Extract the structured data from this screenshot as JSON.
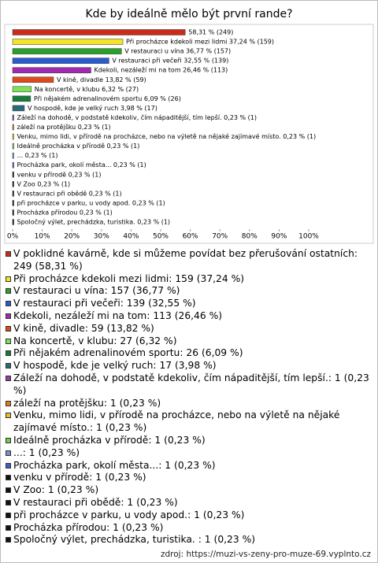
{
  "chart_data": {
    "type": "bar",
    "orientation": "horizontal",
    "title": "Kde by ideálně mělo být první rande?",
    "categories": [
      "V poklidné kavárně, kde si můžeme povídat bez přerušování ostatních",
      "Při procházce kdekoli mezi lidmi",
      "V restauraci u vína",
      "V restauraci při večeři",
      "Kdekoli, nezáleží mi na tom",
      "V kině, divadle",
      "Na koncertě, v klubu",
      "Při nějakém adrenalinovém sportu",
      "V hospodě, kde je velký ruch",
      "Záleží na dohodě, v podstatě kdekoliv, čím nápaditější, tím lepší.",
      "záleží na protějšku",
      "Venku, mimo lidi, v přírodě na procházce, nebo na výletě na nějaké zajímavé místo.",
      "Ideálně procházka v přírodě",
      "...",
      "Procházka park, okolí města...",
      "venku v přírodě",
      "V Zoo",
      "V restauraci při obědě",
      "při procházce v parku, u vody apod.",
      "Procházka přírodou",
      "Spoločný výlet, prechádzka, turistika. "
    ],
    "values": [
      58.31,
      37.24,
      36.77,
      32.55,
      26.46,
      13.82,
      6.32,
      6.09,
      3.98,
      0.23,
      0.23,
      0.23,
      0.23,
      0.23,
      0.23,
      0.23,
      0.23,
      0.23,
      0.23,
      0.23,
      0.23
    ],
    "value_labels": [
      "58,31 % (249)",
      "Při procházce kdekoli mezi lidmi 37,24 % (159)",
      "V restauraci u vína 36,77 % (157)",
      "V restauraci při večeři 32,55 % (139)",
      "Kdekoli, nezáleží mi na tom 26,46 % (113)",
      "V kině, divadle 13,82 % (59)",
      "Na koncertě, v klubu 6,32 % (27)",
      "Při nějakém adrenalinovém sportu 6,09 % (26)",
      "V hospodě, kde je velký ruch 3,98 % (17)",
      "Záleží na dohodě, v podstatě kdekoliv, čím nápaditější, tím lepší. 0,23 % (1)",
      "záleží na protějšku 0,23 % (1)",
      "Venku, mimo lidi, v přírodě na procházce, nebo na výletě na nějaké zajímavé místo. 0,23 % (1)",
      "Ideálně procházka v přírodě 0,23 % (1)",
      "... 0,23 % (1)",
      "Procházka park, okolí města... 0,23 % (1)",
      "venku v přírodě 0,23 % (1)",
      "V Zoo 0,23 % (1)",
      "V restauraci při obědě 0,23 % (1)",
      "při procházce v parku, u vody apod. 0,23 % (1)",
      "Procházka přírodou 0,23 % (1)",
      "Spoločný výlet, prechádzka, turistika.  0,23 % (1)"
    ],
    "legend_labels": [
      "V poklidné kavárně, kde si můžeme povídat bez přerušování ostatních: 249 (58,31 %)",
      "Při procházce kdekoli mezi lidmi: 159 (37,24 %)",
      "V restauraci u vína: 157 (36,77 %)",
      "V restauraci při večeři: 139 (32,55 %)",
      "Kdekoli, nezáleží mi na tom: 113 (26,46 %)",
      "V kině, divadle: 59 (13,82 %)",
      "Na koncertě, v klubu: 27 (6,32 %)",
      "Při nějakém adrenalinovém sportu: 26 (6,09 %)",
      "V hospodě, kde je velký ruch: 17 (3,98 %)",
      "Záleží na dohodě, v podstatě kdekoliv, čím nápaditější, tím lepší.: 1 (0,23 %)",
      "záleží na protějšku: 1 (0,23 %)",
      "Venku, mimo lidi, v přírodě na procházce, nebo na výletě na nějaké zajímavé místo.: 1 (0,23 %)",
      "Ideálně procházka v přírodě: 1 (0,23 %)",
      "...: 1 (0,23 %)",
      "Procházka park, okolí města...: 1 (0,23 %)",
      "venku v přírodě: 1 (0,23 %)",
      "V Zoo: 1 (0,23 %)",
      "V restauraci při obědě: 1 (0,23 %)",
      "při procházce v parku, u vody apod.: 1 (0,23 %)",
      "Procházka přírodou: 1 (0,23 %)",
      "Spoločný výlet, prechádzka, turistika. : 1 (0,23 %)"
    ],
    "colors": [
      "#cc2a1a",
      "#f5e32a",
      "#2aa02a",
      "#2a5bd0",
      "#a02ab0",
      "#e04a1a",
      "#7fe05a",
      "#1a7a3a",
      "#2a6a7a",
      "#9040a0",
      "#e07a1a",
      "#e0c030",
      "#6ad04a",
      "#7090d0",
      "#4060c0",
      "#111111",
      "#111111",
      "#111111",
      "#111111",
      "#111111",
      "#111111"
    ],
    "xlim": [
      0,
      100
    ],
    "xticks": [
      {
        "value": 0,
        "label": "0%"
      },
      {
        "value": 10,
        "label": "10%"
      },
      {
        "value": 20,
        "label": "20%"
      },
      {
        "value": 30,
        "label": "30%"
      },
      {
        "value": 40,
        "label": "40%"
      },
      {
        "value": 50,
        "label": "50%"
      },
      {
        "value": 60,
        "label": "60%"
      },
      {
        "value": 70,
        "label": "70%"
      },
      {
        "value": 80,
        "label": "80%"
      },
      {
        "value": 90,
        "label": "90%"
      },
      {
        "value": 100,
        "label": "100%"
      }
    ],
    "grid": false,
    "source": "zdroj: https://muzi-vs-zeny-pro-muze-69.vyplnto.cz"
  }
}
